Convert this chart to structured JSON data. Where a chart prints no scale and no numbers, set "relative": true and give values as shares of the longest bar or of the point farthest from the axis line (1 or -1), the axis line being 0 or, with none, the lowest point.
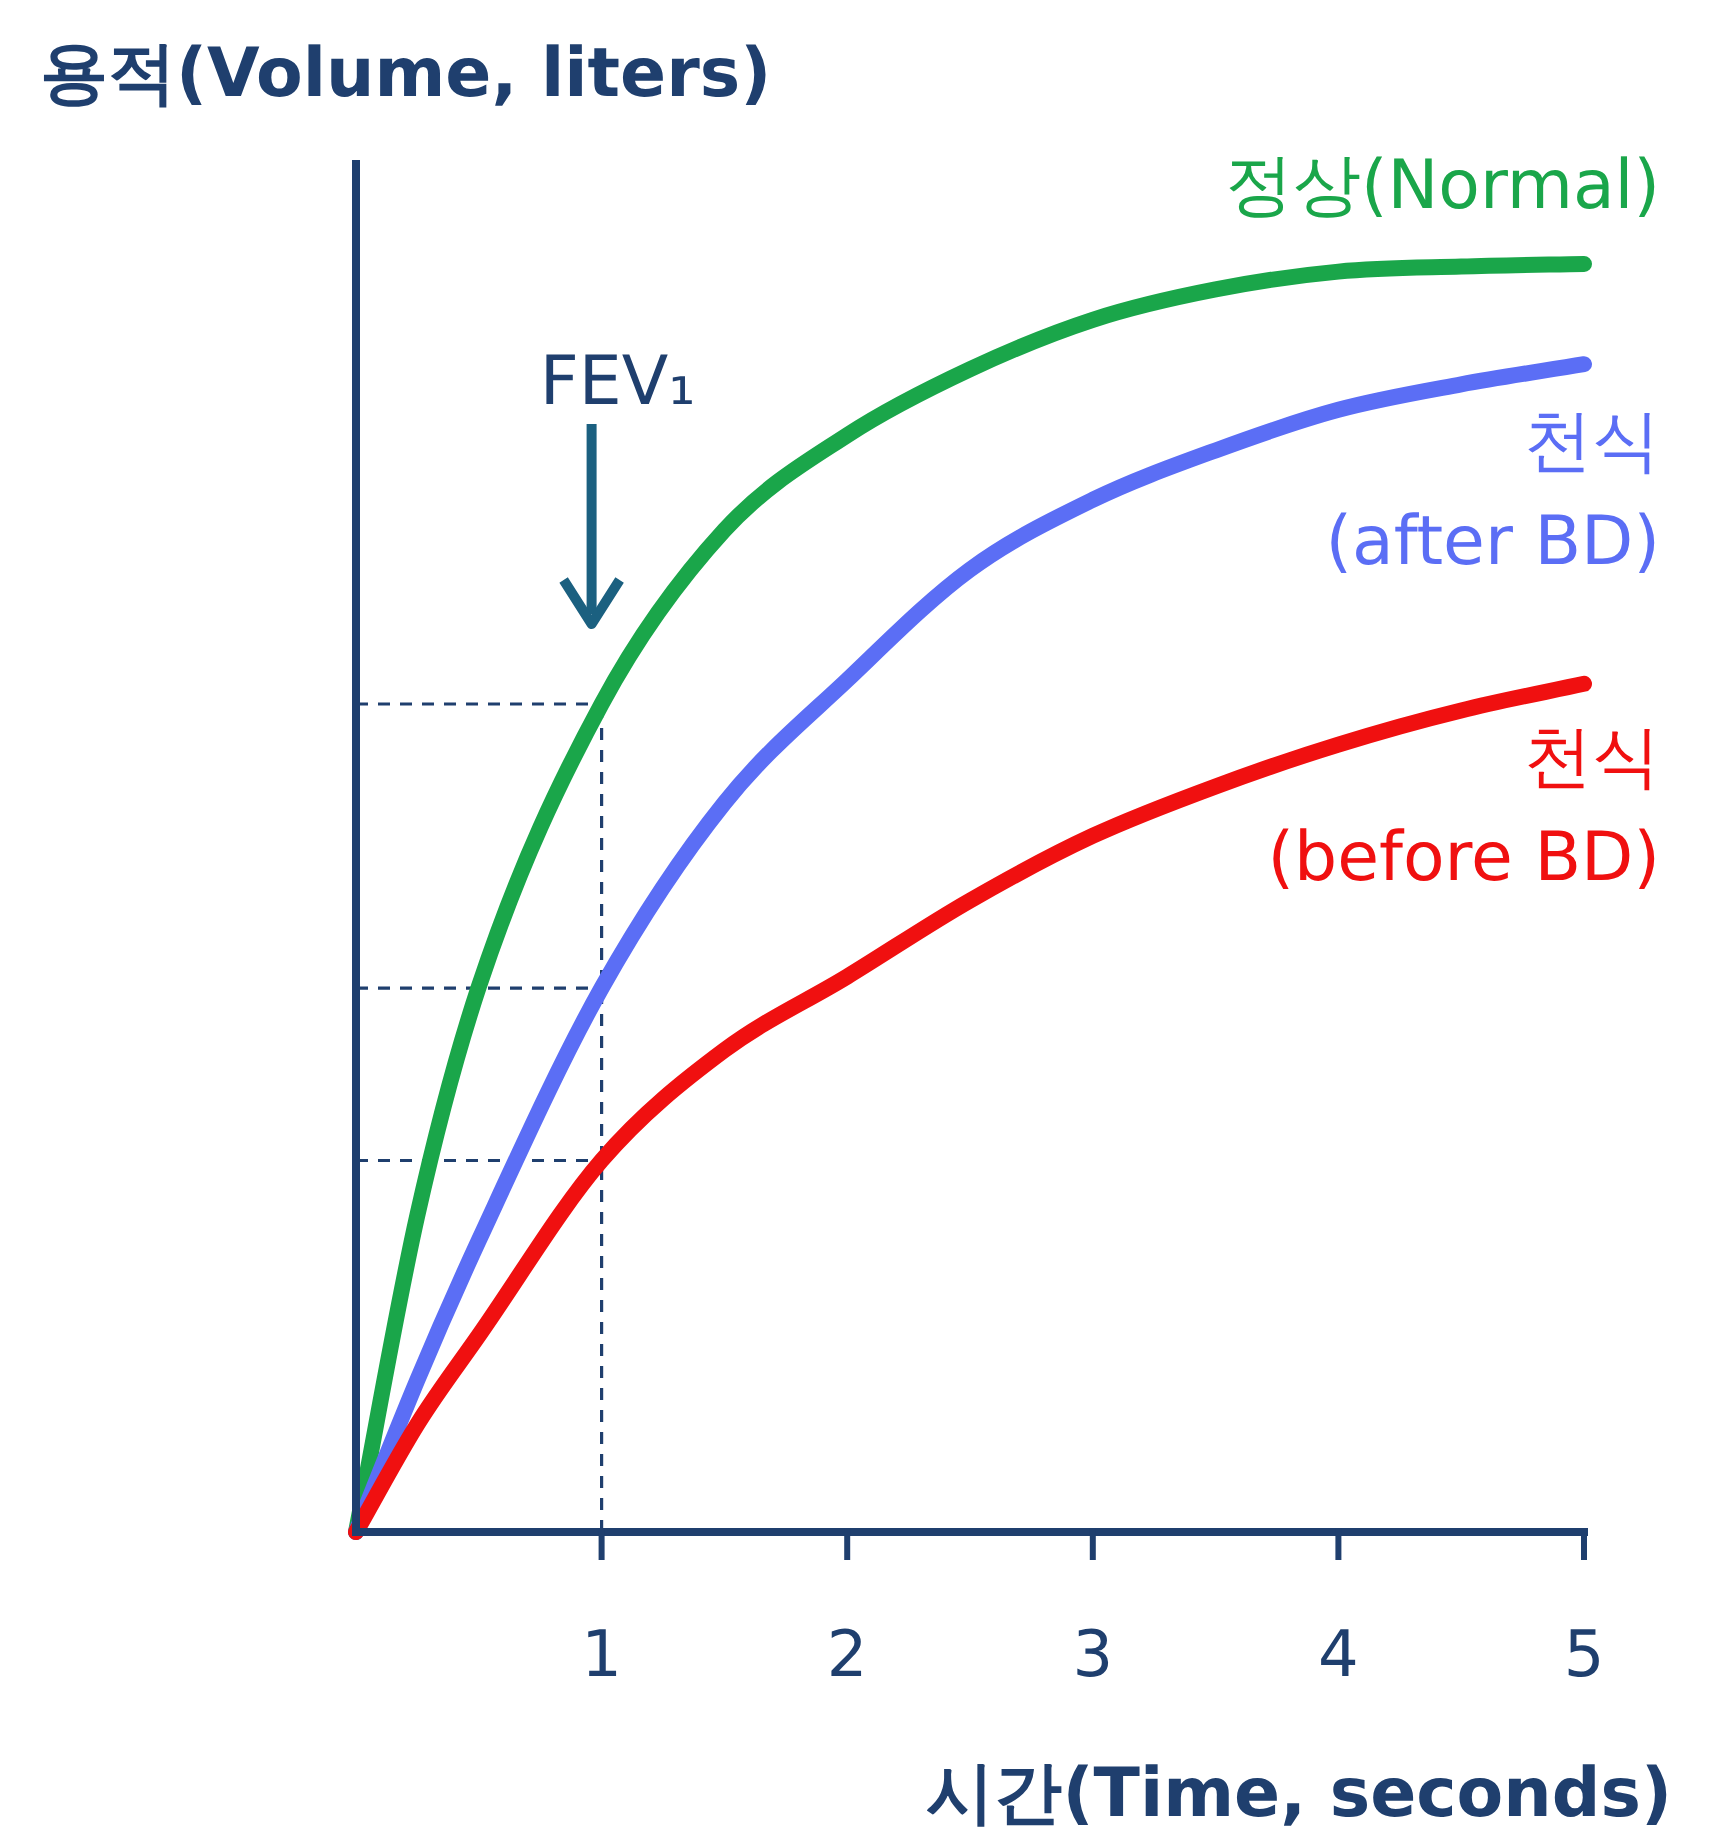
{
  "chart_data": {
    "type": "line",
    "title": "용적(Volume, liters)",
    "xlabel": "시간(Time, seconds)",
    "relative": true,
    "x": [
      0,
      0.25,
      0.5,
      1,
      1.5,
      2,
      2.5,
      3,
      3.5,
      4,
      4.5,
      5
    ],
    "xlim": [
      0,
      5
    ],
    "xticks": [
      1,
      2,
      3,
      4,
      5
    ],
    "marker": "none",
    "line_style": "solid",
    "series": [
      {
        "name": "정상(Normal)",
        "color": "#1aa64a",
        "values": [
          0,
          0.25,
          0.43,
          0.653,
          0.79,
          0.865,
          0.917,
          0.956,
          0.98,
          0.994,
          0.998,
          1
        ]
      },
      {
        "name": "천식\n(after BD)",
        "color": "#5b6ef5",
        "values": [
          0,
          0.12,
          0.23,
          0.429,
          0.575,
          0.672,
          0.759,
          0.814,
          0.853,
          0.885,
          0.905,
          0.921
        ]
      },
      {
        "name": "천식\n(before BD)",
        "color": "#f01010",
        "values": [
          0,
          0.085,
          0.155,
          0.293,
          0.38,
          0.438,
          0.498,
          0.549,
          0.588,
          0.621,
          0.648,
          0.669
        ]
      }
    ],
    "ref_lines": [
      {
        "axis": "x",
        "value": 1,
        "color": "#1f3f6e",
        "line_style": "dashed"
      },
      {
        "axis": "y",
        "value": 0.653,
        "color": "#1f3f6e",
        "line_style": "dashed"
      },
      {
        "axis": "y",
        "value": 0.429,
        "color": "#1f3f6e",
        "line_style": "dashed"
      },
      {
        "axis": "y",
        "value": 0.293,
        "color": "#1f3f6e",
        "line_style": "dashed"
      }
    ],
    "annotations": [
      "FEV₁"
    ]
  }
}
